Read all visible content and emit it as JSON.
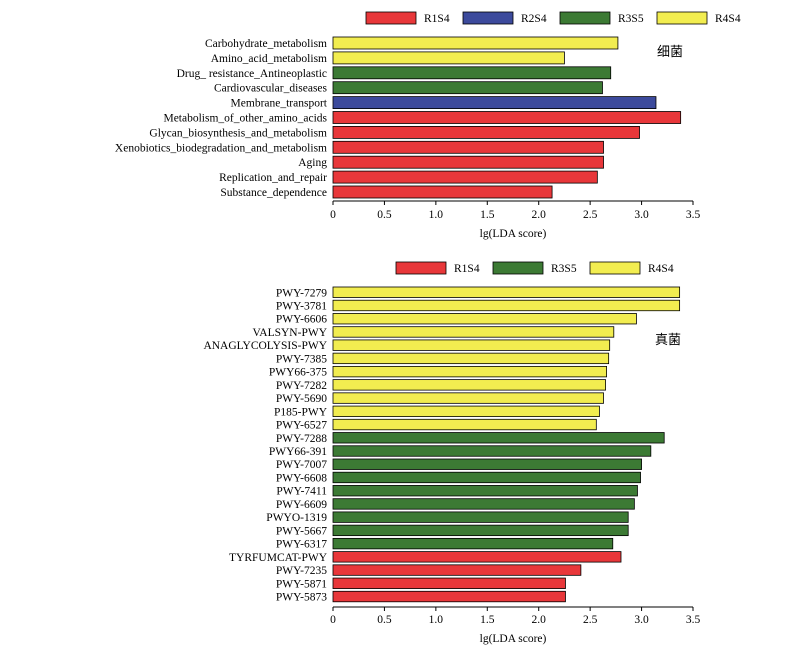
{
  "chart_data": [
    {
      "type": "bar",
      "orientation": "horizontal",
      "panel_label": "细菌",
      "xlabel": "lg(LDA score)",
      "xlim": [
        0,
        3.5
      ],
      "xticks": [
        "0",
        "0.5",
        "1.0",
        "1.5",
        "2.0",
        "2.5",
        "3.0",
        "3.5"
      ],
      "legend": {
        "placement": "top",
        "entries": [
          {
            "name": "R1S4",
            "color": "#e8373a"
          },
          {
            "name": "R2S4",
            "color": "#3c4a9c"
          },
          {
            "name": "R3S5",
            "color": "#3c7a34"
          },
          {
            "name": "R4S4",
            "color": "#f2ed50"
          }
        ]
      },
      "bars": [
        {
          "category": "Carbohydrate_metabolism",
          "value": 2.77,
          "group": "R4S4"
        },
        {
          "category": "Amino_acid_metabolism",
          "value": 2.25,
          "group": "R4S4"
        },
        {
          "category": "Drug_ resistance_Antineoplastic",
          "value": 2.7,
          "group": "R3S5"
        },
        {
          "category": "Cardiovascular_diseases",
          "value": 2.62,
          "group": "R3S5"
        },
        {
          "category": "Membrane_transport",
          "value": 3.14,
          "group": "R2S4"
        },
        {
          "category": "Metabolism_of_other_amino_acids",
          "value": 3.38,
          "group": "R1S4"
        },
        {
          "category": "Glycan_biosynthesis_and_metabolism",
          "value": 2.98,
          "group": "R1S4"
        },
        {
          "category": "Xenobiotics_biodegradation_and_metabolism",
          "value": 2.63,
          "group": "R1S4"
        },
        {
          "category": "Aging",
          "value": 2.63,
          "group": "R1S4"
        },
        {
          "category": "Replication_and_repair",
          "value": 2.57,
          "group": "R1S4"
        },
        {
          "category": "Substance_dependence",
          "value": 2.13,
          "group": "R1S4"
        }
      ]
    },
    {
      "type": "bar",
      "orientation": "horizontal",
      "panel_label": "真菌",
      "xlabel": "lg(LDA score)",
      "xlim": [
        0,
        3.5
      ],
      "xticks": [
        "0",
        "0.5",
        "1.0",
        "1.5",
        "2.0",
        "2.5",
        "3.0",
        "3.5"
      ],
      "legend": {
        "placement": "top",
        "entries": [
          {
            "name": "R1S4",
            "color": "#e8373a"
          },
          {
            "name": "R3S5",
            "color": "#3c7a34"
          },
          {
            "name": "R4S4",
            "color": "#f2ed50"
          }
        ]
      },
      "bars": [
        {
          "category": "PWY-7279",
          "value": 3.37,
          "group": "R4S4"
        },
        {
          "category": "PWY-3781",
          "value": 3.37,
          "group": "R4S4"
        },
        {
          "category": "PWY-6606",
          "value": 2.95,
          "group": "R4S4"
        },
        {
          "category": "VALSYN-PWY",
          "value": 2.73,
          "group": "R4S4"
        },
        {
          "category": "ANAGLYCOLYSIS-PWY",
          "value": 2.69,
          "group": "R4S4"
        },
        {
          "category": "PWY-7385",
          "value": 2.68,
          "group": "R4S4"
        },
        {
          "category": "PWY66-375",
          "value": 2.66,
          "group": "R4S4"
        },
        {
          "category": "PWY-7282",
          "value": 2.65,
          "group": "R4S4"
        },
        {
          "category": "PWY-5690",
          "value": 2.63,
          "group": "R4S4"
        },
        {
          "category": "P185-PWY",
          "value": 2.59,
          "group": "R4S4"
        },
        {
          "category": "PWY-6527",
          "value": 2.56,
          "group": "R4S4"
        },
        {
          "category": "PWY-7288",
          "value": 3.22,
          "group": "R3S5"
        },
        {
          "category": "PWY66-391",
          "value": 3.09,
          "group": "R3S5"
        },
        {
          "category": "PWY-7007",
          "value": 3.0,
          "group": "R3S5"
        },
        {
          "category": "PWY-6608",
          "value": 2.99,
          "group": "R3S5"
        },
        {
          "category": "PWY-7411",
          "value": 2.96,
          "group": "R3S5"
        },
        {
          "category": "PWY-6609",
          "value": 2.93,
          "group": "R3S5"
        },
        {
          "category": "PWYO-1319",
          "value": 2.87,
          "group": "R3S5"
        },
        {
          "category": "PWY-5667",
          "value": 2.87,
          "group": "R3S5"
        },
        {
          "category": "PWY-6317",
          "value": 2.72,
          "group": "R3S5"
        },
        {
          "category": "TYRFUMCAT-PWY",
          "value": 2.8,
          "group": "R1S4"
        },
        {
          "category": "PWY-7235",
          "value": 2.41,
          "group": "R1S4"
        },
        {
          "category": "PWY-5871",
          "value": 2.26,
          "group": "R1S4"
        },
        {
          "category": "PWY-5873",
          "value": 2.26,
          "group": "R1S4"
        }
      ]
    }
  ]
}
